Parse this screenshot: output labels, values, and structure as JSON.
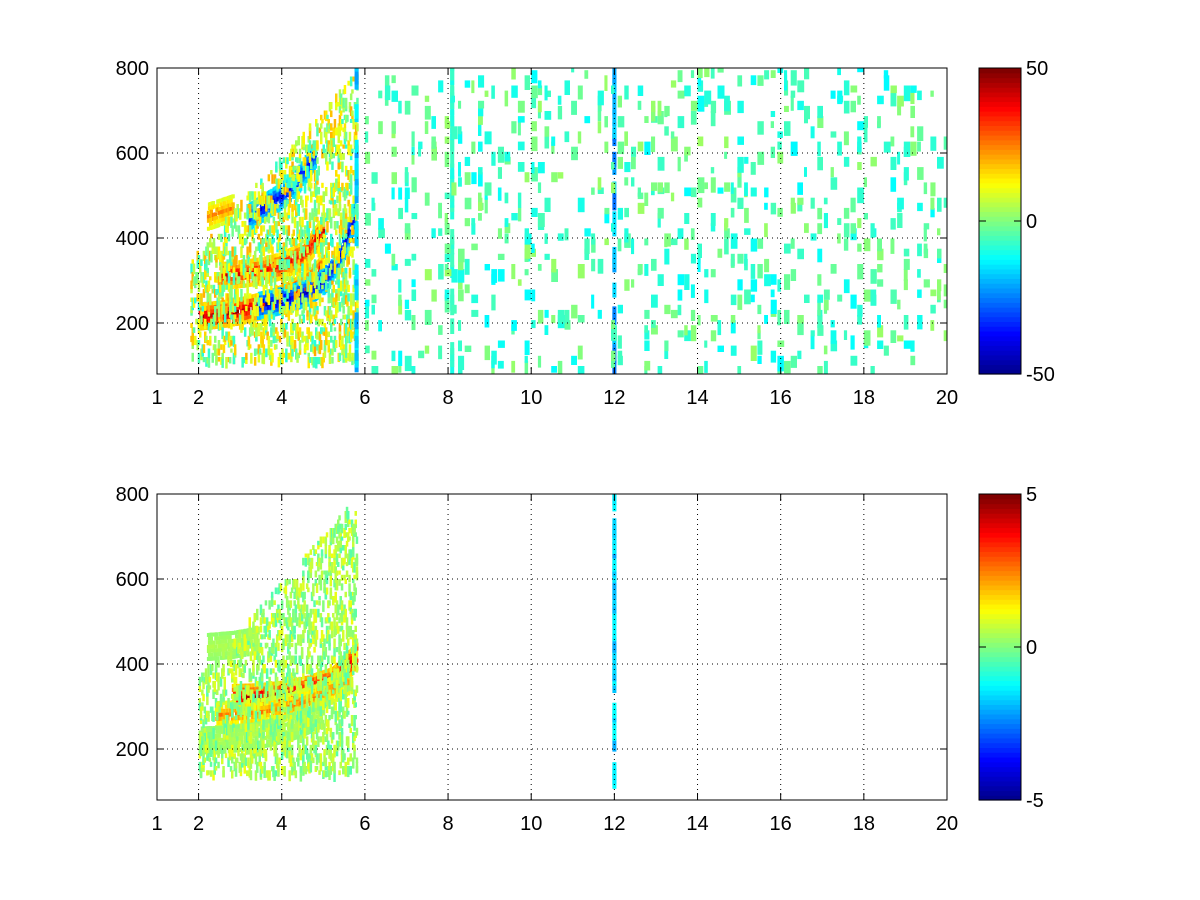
{
  "figure": {
    "background": "#ffffff",
    "colormap": "jet",
    "colormap_stops": [
      "#00008f",
      "#0000ff",
      "#0080ff",
      "#00ffff",
      "#80ff80",
      "#ffff00",
      "#ff8000",
      "#ff0000",
      "#800000"
    ]
  },
  "chart_data": [
    {
      "type": "heatmap",
      "title": "",
      "xlabel": "",
      "ylabel": "",
      "xlim": [
        1,
        20
      ],
      "ylim": [
        80,
        800
      ],
      "x_ticks": [
        1,
        2,
        4,
        6,
        8,
        10,
        12,
        14,
        16,
        18,
        20
      ],
      "y_ticks": [
        200,
        400,
        600,
        800
      ],
      "grid": true,
      "colorbar": {
        "min": -50,
        "max": 50,
        "ticks": [
          -50,
          0,
          50
        ]
      },
      "features": [
        {
          "kind": "band",
          "x": [
            2,
            2.5,
            3,
            3.5,
            4,
            4.5,
            5
          ],
          "y": [
            215,
            220,
            228,
            240,
            258,
            285,
            330
          ],
          "value": 45
        },
        {
          "kind": "band",
          "x": [
            2.5,
            3,
            3.5,
            4,
            4.5,
            5
          ],
          "y": [
            310,
            315,
            322,
            335,
            360,
            420
          ],
          "value": 40
        },
        {
          "kind": "band",
          "x": [
            3.4,
            3.8,
            4.2,
            4.6,
            5,
            5.4,
            5.8
          ],
          "y": [
            240,
            248,
            258,
            272,
            300,
            360,
            470
          ],
          "value": -45
        },
        {
          "kind": "band",
          "x": [
            3.2,
            3.6,
            4,
            4.4,
            4.8
          ],
          "y": [
            450,
            475,
            500,
            540,
            600
          ],
          "value": -40
        },
        {
          "kind": "band",
          "x": [
            2.2,
            2.5,
            2.8
          ],
          "y": [
            450,
            460,
            470
          ],
          "value": 25
        },
        {
          "kind": "cloud",
          "x": [
            1.8,
            5.8
          ],
          "y": [
            120,
            800
          ],
          "value": 15
        },
        {
          "kind": "column",
          "x": 12,
          "value": -25
        },
        {
          "kind": "column",
          "x": 5.8,
          "value": -20
        },
        {
          "kind": "column",
          "x": 8.1,
          "value": -10
        },
        {
          "kind": "scatter",
          "x": [
            6,
            20
          ],
          "y": [
            80,
            800
          ],
          "value": -5
        }
      ]
    },
    {
      "type": "heatmap",
      "title": "",
      "xlabel": "",
      "ylabel": "",
      "xlim": [
        1,
        20
      ],
      "ylim": [
        80,
        800
      ],
      "x_ticks": [
        1,
        2,
        4,
        6,
        8,
        10,
        12,
        14,
        16,
        18,
        20
      ],
      "y_ticks": [
        200,
        400,
        600,
        800
      ],
      "grid": true,
      "colorbar": {
        "min": -5,
        "max": 5,
        "ticks": [
          -5,
          0,
          5
        ]
      },
      "features": [
        {
          "kind": "band",
          "x": [
            2.8,
            3.4,
            4,
            4.6,
            5.2,
            5.8
          ],
          "y": [
            320,
            322,
            328,
            340,
            360,
            420
          ],
          "value": 4.5
        },
        {
          "kind": "band",
          "x": [
            2.4,
            3,
            3.6,
            4.2,
            4.8,
            5.6
          ],
          "y": [
            280,
            282,
            288,
            300,
            320,
            360
          ],
          "value": 2.5
        },
        {
          "kind": "band",
          "x": [
            2,
            2.6,
            3.2,
            3.8,
            4.4,
            5
          ],
          "y": [
            220,
            222,
            228,
            240,
            258,
            285
          ],
          "value": 0.5
        },
        {
          "kind": "band",
          "x": [
            2.2,
            2.8,
            3.4
          ],
          "y": [
            440,
            445,
            455
          ],
          "value": 0.5
        },
        {
          "kind": "cloud",
          "x": [
            2,
            5.8
          ],
          "y": [
            150,
            800
          ],
          "value": 0.8
        },
        {
          "kind": "column",
          "x": 12,
          "value": -2
        }
      ]
    }
  ]
}
